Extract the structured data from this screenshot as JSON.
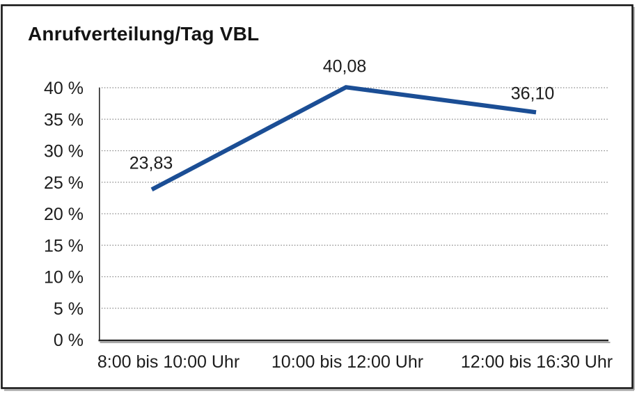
{
  "chart_data": {
    "type": "line",
    "title": "Anrufverteilung/Tag VBL",
    "categories": [
      "8:00 bis 10:00 Uhr",
      "10:00 bis 12:00 Uhr",
      "12:00 bis 16:30 Uhr"
    ],
    "values": [
      23.83,
      40.08,
      36.1
    ],
    "value_labels": [
      "23,83",
      "40,08",
      "36,10"
    ],
    "ylim": [
      0,
      40
    ],
    "yticks": [
      0,
      5,
      10,
      15,
      20,
      25,
      30,
      35,
      40
    ],
    "ytick_labels": [
      "0 %",
      "5 %",
      "10 %",
      "15 %",
      "20 %",
      "25 %",
      "30 %",
      "35 %",
      "40 %"
    ],
    "xlabel": "",
    "ylabel": "",
    "legend": "none",
    "grid": "horizontal-dotted",
    "line_color": "#1b4e95",
    "axis_color": "#262626",
    "grid_color": "#878787",
    "frame_color": "#161616",
    "shadow_color": "#9c9c9c",
    "text_color": "#1c1c1c"
  }
}
